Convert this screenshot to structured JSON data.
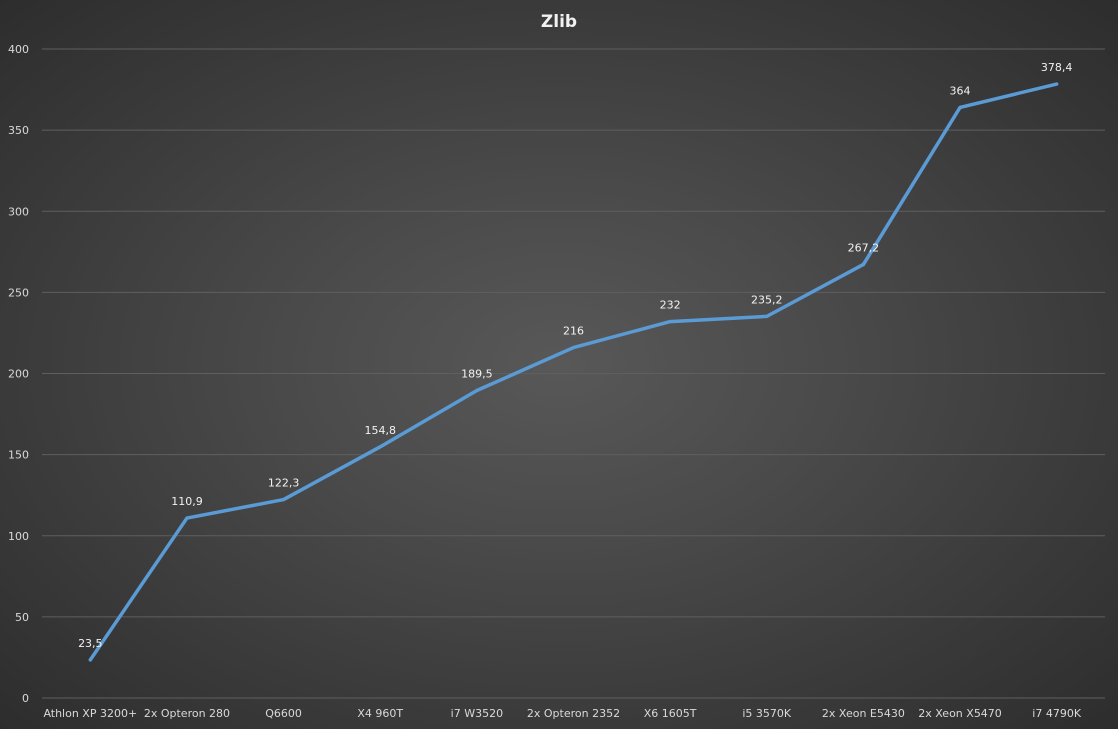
{
  "chart_data": {
    "type": "line",
    "title": "Zlib",
    "xlabel": "",
    "ylabel": "",
    "ylim": [
      0,
      400
    ],
    "yticks": [
      "0",
      "50",
      "100",
      "150",
      "200",
      "250",
      "300",
      "350",
      "400"
    ],
    "grid": true,
    "legend": "none",
    "categories": [
      "Athlon XP 3200+",
      "2x Opteron 280",
      "Q6600",
      "X4 960T",
      "i7 W3520",
      "2x Opteron 2352",
      "X6 1605T",
      "i5 3570K",
      "2x Xeon E5430",
      "2x Xeon X5470",
      "i7 4790K"
    ],
    "series": [
      {
        "values": [
          23.5,
          110.9,
          122.3,
          154.8,
          189.5,
          216,
          232,
          235.2,
          267.2,
          364,
          378.4
        ],
        "labels": [
          "23,5",
          "110,9",
          "122,3",
          "154,8",
          "189,5",
          "216",
          "232",
          "235,2",
          "267,2",
          "364",
          "378,4"
        ],
        "color": "#5b9bd5"
      }
    ],
    "colors": {
      "gridline": "#5f5f5f",
      "text": "#d9d9d9"
    }
  }
}
